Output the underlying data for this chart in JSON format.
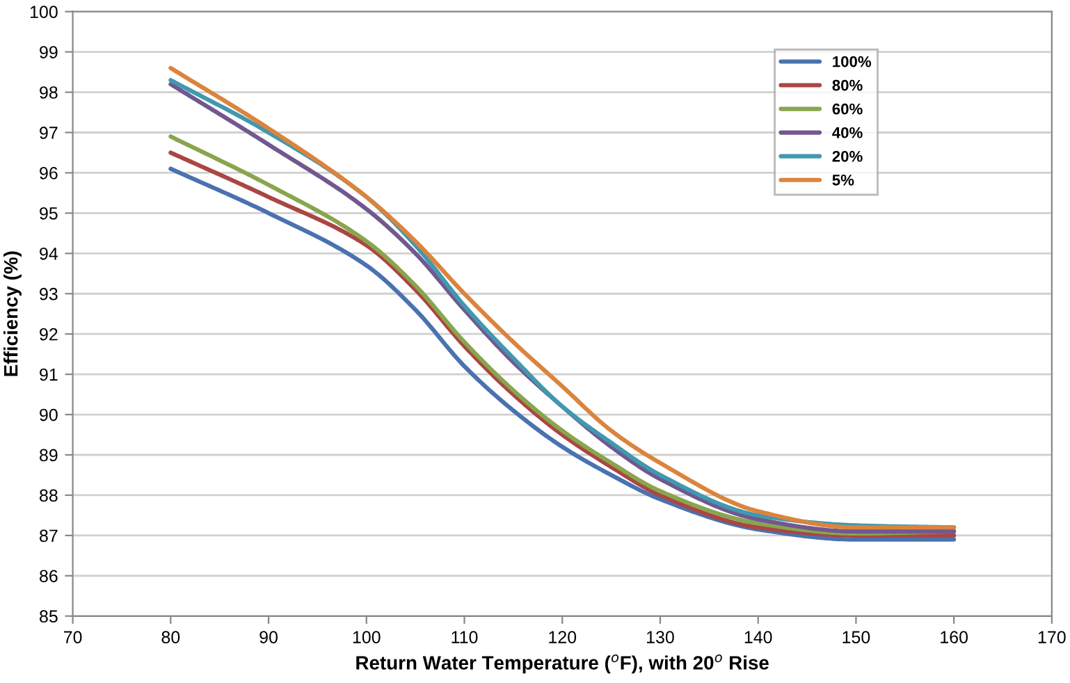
{
  "chart_data": {
    "type": "line",
    "xlabel": "Return Water Temperature ($^{o}$F), with 20$^{o}$ Rise",
    "ylabel": "Efficiency (%)",
    "x": [
      80,
      90,
      100,
      105,
      110,
      115,
      120,
      125,
      130,
      140,
      150,
      160
    ],
    "series": [
      {
        "name": "100%",
        "color": "#4a72b0",
        "values": [
          96.1,
          95.0,
          93.7,
          92.6,
          91.2,
          90.1,
          89.2,
          88.5,
          87.9,
          87.15,
          86.9,
          86.9
        ]
      },
      {
        "name": "80%",
        "color": "#aa4643",
        "values": [
          96.5,
          95.4,
          94.2,
          93.1,
          91.7,
          90.5,
          89.5,
          88.7,
          88.0,
          87.2,
          87.0,
          87.0
        ]
      },
      {
        "name": "60%",
        "color": "#89a54e",
        "values": [
          96.9,
          95.7,
          94.3,
          93.2,
          91.8,
          90.6,
          89.6,
          88.8,
          88.1,
          87.3,
          87.05,
          87.1
        ]
      },
      {
        "name": "40%",
        "color": "#71588f",
        "values": [
          98.2,
          96.7,
          95.1,
          94.0,
          92.6,
          91.3,
          90.2,
          89.2,
          88.4,
          87.4,
          87.1,
          87.1
        ]
      },
      {
        "name": "20%",
        "color": "#4198af",
        "values": [
          98.3,
          97.0,
          95.4,
          94.2,
          92.7,
          91.4,
          90.2,
          89.3,
          88.5,
          87.5,
          87.25,
          87.2
        ]
      },
      {
        "name": "5%",
        "color": "#db843d",
        "values": [
          98.6,
          97.1,
          95.4,
          94.3,
          93.0,
          91.8,
          90.7,
          89.6,
          88.8,
          87.6,
          87.2,
          87.2
        ]
      }
    ],
    "xlim": [
      70,
      170
    ],
    "xticks": [
      70,
      80,
      90,
      100,
      110,
      120,
      130,
      140,
      150,
      160,
      170
    ],
    "ylim": [
      85,
      100
    ],
    "yticks": [
      85,
      86,
      87,
      88,
      89,
      90,
      91,
      92,
      93,
      94,
      95,
      96,
      97,
      98,
      99,
      100
    ],
    "grid": "y",
    "legend": "top right",
    "marker": "none",
    "line_style": "solid"
  }
}
